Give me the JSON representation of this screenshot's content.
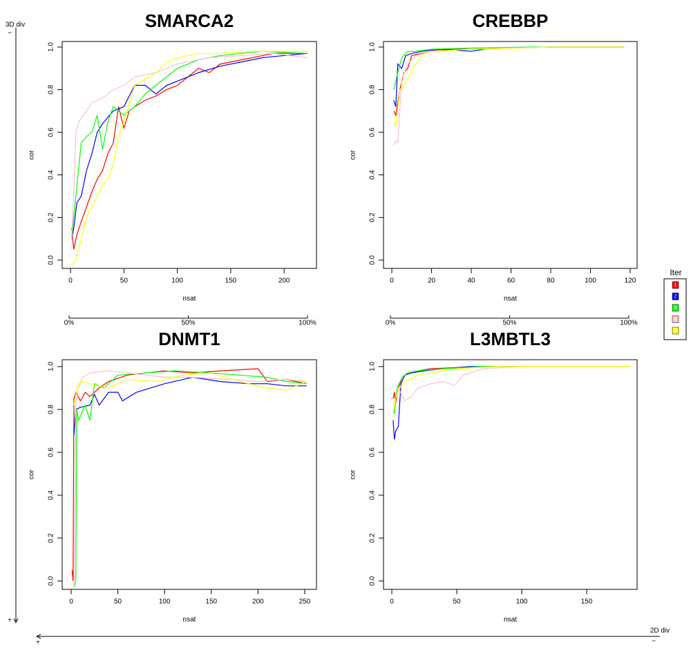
{
  "chart_data": [
    {
      "type": "line",
      "title": "SMARCA2",
      "xlabel": "nsat",
      "ylabel": "cor",
      "xlim": [
        -7.8,
        230.3
      ],
      "xticks": [
        0,
        50,
        100,
        150,
        200
      ],
      "ylim": [
        -0.039,
        1.026
      ],
      "yticks": [
        {
          "value": 0,
          "label": "0.0"
        },
        0.2,
        0.4,
        0.6,
        0.8,
        {
          "value": 1,
          "label": "1.0"
        }
      ],
      "x2lim": [
        0,
        100
      ],
      "x2ticks": [
        {
          "value": 0,
          "label": "0%"
        },
        {
          "value": 50,
          "label": "50%"
        },
        {
          "value": 100,
          "label": "100%"
        }
      ],
      "series": [
        {
          "name": "1",
          "color": "#ff0000",
          "x": [
            1,
            3,
            6,
            10,
            15,
            20,
            25,
            30,
            35,
            40,
            45,
            50,
            55,
            60,
            70,
            80,
            90,
            100,
            110,
            120,
            130,
            140,
            150,
            170,
            190,
            222
          ],
          "values": [
            0.15,
            0.05,
            0.12,
            0.18,
            0.25,
            0.32,
            0.38,
            0.42,
            0.5,
            0.55,
            0.72,
            0.62,
            0.7,
            0.72,
            0.75,
            0.77,
            0.8,
            0.82,
            0.86,
            0.9,
            0.88,
            0.92,
            0.93,
            0.95,
            0.97,
            0.97
          ]
        },
        {
          "name": "2",
          "color": "#0000ff",
          "x": [
            1,
            3,
            6,
            10,
            15,
            20,
            25,
            30,
            40,
            50,
            60,
            70,
            80,
            90,
            100,
            120,
            140,
            160,
            180,
            200,
            222
          ],
          "values": [
            0.1,
            0.15,
            0.27,
            0.3,
            0.42,
            0.5,
            0.6,
            0.64,
            0.7,
            0.72,
            0.82,
            0.82,
            0.78,
            0.82,
            0.84,
            0.88,
            0.91,
            0.93,
            0.95,
            0.96,
            0.97
          ]
        },
        {
          "name": "3",
          "color": "#00ff00",
          "x": [
            1,
            5,
            10,
            15,
            20,
            25,
            30,
            35,
            40,
            50,
            60,
            70,
            80,
            90,
            100,
            120,
            140,
            160,
            180,
            222
          ],
          "values": [
            0.1,
            0.3,
            0.55,
            0.58,
            0.6,
            0.68,
            0.52,
            0.65,
            0.72,
            0.68,
            0.72,
            0.78,
            0.82,
            0.86,
            0.9,
            0.94,
            0.96,
            0.97,
            0.98,
            0.97
          ]
        },
        {
          "name": "4",
          "color": "#ffc0cb",
          "x": [
            1,
            3,
            5,
            8,
            15,
            20,
            30,
            40,
            50,
            60,
            80,
            100,
            130,
            160,
            190,
            222
          ],
          "values": [
            0.1,
            0.3,
            0.6,
            0.65,
            0.7,
            0.74,
            0.76,
            0.8,
            0.82,
            0.86,
            0.88,
            0.92,
            0.95,
            0.96,
            0.97,
            0.95
          ]
        },
        {
          "name": "5",
          "color": "#ffff00",
          "x": [
            1,
            5,
            10,
            15,
            20,
            25,
            30,
            35,
            40,
            45,
            50,
            60,
            70,
            80,
            90,
            100,
            120,
            140,
            170,
            222
          ],
          "values": [
            -0.03,
            0.0,
            0.1,
            0.2,
            0.25,
            0.3,
            0.35,
            0.38,
            0.45,
            0.58,
            0.65,
            0.82,
            0.85,
            0.88,
            0.93,
            0.95,
            0.97,
            0.97,
            0.98,
            0.98
          ]
        }
      ]
    },
    {
      "type": "line",
      "title": "CREBBP",
      "xlabel": "nsat",
      "ylabel": "cor",
      "xlim": [
        -4.2,
        123.5
      ],
      "xticks": [
        0,
        20,
        40,
        60,
        80,
        100,
        120
      ],
      "ylim": [
        -0.039,
        1.026
      ],
      "yticks": [
        {
          "value": 0,
          "label": "0.0"
        },
        0.2,
        0.4,
        0.6,
        0.8,
        {
          "value": 1,
          "label": "1.0"
        }
      ],
      "x2lim": [
        0,
        100
      ],
      "x2ticks": [
        {
          "value": 0,
          "label": "0%"
        },
        {
          "value": 50,
          "label": "50%"
        },
        {
          "value": 100,
          "label": "100%"
        }
      ],
      "series": [
        {
          "name": "1",
          "color": "#ff0000",
          "x": [
            1,
            2,
            4,
            6,
            8,
            10,
            15,
            20,
            30,
            40,
            60,
            80,
            117
          ],
          "values": [
            0.7,
            0.68,
            0.8,
            0.88,
            0.9,
            0.96,
            0.97,
            0.98,
            0.99,
            0.99,
            0.995,
            1.0,
            1.0
          ]
        },
        {
          "name": "2",
          "color": "#0000ff",
          "x": [
            1,
            2,
            3,
            5,
            7,
            10,
            15,
            25,
            40,
            50,
            80,
            117
          ],
          "values": [
            0.75,
            0.72,
            0.92,
            0.9,
            0.96,
            0.97,
            0.98,
            0.99,
            0.98,
            0.995,
            1.0,
            1.0
          ]
        },
        {
          "name": "3",
          "color": "#00ff00",
          "x": [
            1,
            3,
            5,
            8,
            12,
            20,
            40,
            70,
            117
          ],
          "values": [
            0.8,
            0.88,
            0.95,
            0.98,
            0.98,
            0.99,
            0.995,
            1.0,
            1.0
          ]
        },
        {
          "name": "4",
          "color": "#ffc0cb",
          "x": [
            1,
            2,
            3,
            5,
            8,
            12,
            20,
            40,
            80,
            117
          ],
          "values": [
            0.54,
            0.56,
            0.55,
            0.85,
            0.92,
            0.96,
            0.98,
            0.99,
            1.0,
            1.0
          ]
        },
        {
          "name": "5",
          "color": "#ffff00",
          "x": [
            1,
            2,
            4,
            6,
            8,
            12,
            16,
            20,
            40,
            80,
            117
          ],
          "values": [
            0.65,
            0.63,
            0.8,
            0.82,
            0.85,
            0.92,
            0.97,
            0.98,
            0.99,
            1.0,
            1.0
          ]
        }
      ]
    },
    {
      "type": "line",
      "title": "DNMT1",
      "xlabel": "nsat",
      "ylabel": "cor",
      "xlim": [
        -9.6,
        262.6
      ],
      "xticks": [
        0,
        50,
        100,
        150,
        200,
        250
      ],
      "ylim": [
        -0.039,
        1.032
      ],
      "yticks": [
        {
          "value": 0,
          "label": "0.0"
        },
        0.2,
        0.4,
        0.6,
        0.8,
        {
          "value": 1,
          "label": "1.0"
        }
      ],
      "series": [
        {
          "name": "1",
          "color": "#ff0000",
          "x": [
            1,
            2,
            3,
            5,
            10,
            15,
            20,
            30,
            40,
            60,
            80,
            100,
            130,
            160,
            200,
            210,
            230,
            252
          ],
          "values": [
            0.05,
            0.0,
            0.85,
            0.88,
            0.84,
            0.88,
            0.86,
            0.9,
            0.93,
            0.96,
            0.97,
            0.98,
            0.97,
            0.98,
            0.99,
            0.93,
            0.94,
            0.92
          ]
        },
        {
          "name": "2",
          "color": "#0000ff",
          "x": [
            3,
            5,
            10,
            20,
            25,
            30,
            40,
            50,
            55,
            70,
            100,
            130,
            160,
            190,
            210,
            230,
            252
          ],
          "values": [
            0.68,
            0.8,
            0.81,
            0.82,
            0.87,
            0.82,
            0.88,
            0.88,
            0.84,
            0.88,
            0.92,
            0.95,
            0.93,
            0.92,
            0.92,
            0.91,
            0.91
          ]
        },
        {
          "name": "3",
          "color": "#00ff00",
          "x": [
            3,
            5,
            6,
            8,
            15,
            20,
            25,
            35,
            50,
            80,
            110,
            150,
            180,
            210,
            230,
            252
          ],
          "values": [
            -0.03,
            0.0,
            0.8,
            0.75,
            0.82,
            0.75,
            0.92,
            0.9,
            0.96,
            0.97,
            0.98,
            0.97,
            0.96,
            0.95,
            0.93,
            0.92
          ]
        },
        {
          "name": "4",
          "color": "#ffc0cb",
          "x": [
            3,
            5,
            8,
            12,
            20,
            40,
            60,
            100,
            130,
            170,
            200,
            230,
            252
          ],
          "values": [
            -0.03,
            0.82,
            0.9,
            0.95,
            0.97,
            0.98,
            0.97,
            0.95,
            0.95,
            0.94,
            0.93,
            0.94,
            0.93
          ]
        },
        {
          "name": "5",
          "color": "#ffff00",
          "x": [
            3,
            6,
            10,
            20,
            40,
            60,
            90,
            120,
            150,
            180,
            210,
            230,
            252
          ],
          "values": [
            0.82,
            0.9,
            0.93,
            0.92,
            0.9,
            0.94,
            0.93,
            0.96,
            0.97,
            0.93,
            0.9,
            0.89,
            0.93
          ]
        }
      ]
    },
    {
      "type": "line",
      "title": "L3MBTL3",
      "xlabel": "nsat",
      "ylabel": "cor",
      "xlim": [
        -6.4,
        188.8
      ],
      "xticks": [
        0,
        50,
        100,
        150
      ],
      "ylim": [
        -0.039,
        1.032
      ],
      "yticks": [
        {
          "value": 0,
          "label": "0.0"
        },
        0.2,
        0.4,
        0.6,
        0.8,
        {
          "value": 1,
          "label": "1.0"
        }
      ],
      "series": [
        {
          "name": "1",
          "color": "#ff0000",
          "x": [
            1,
            2,
            3,
            5,
            8,
            12,
            20,
            30,
            50,
            80,
            120,
            184
          ],
          "values": [
            0.85,
            0.88,
            0.83,
            0.9,
            0.95,
            0.97,
            0.98,
            0.99,
            0.995,
            1.0,
            1.0,
            1.0
          ]
        },
        {
          "name": "2",
          "color": "#0000ff",
          "x": [
            1,
            2,
            3,
            5,
            7,
            10,
            15,
            25,
            40,
            60,
            120,
            184
          ],
          "values": [
            0.75,
            0.66,
            0.7,
            0.72,
            0.92,
            0.96,
            0.97,
            0.98,
            0.99,
            1.0,
            1.0,
            1.0
          ]
        },
        {
          "name": "3",
          "color": "#00ff00",
          "x": [
            1,
            2,
            4,
            8,
            12,
            20,
            40,
            70,
            184
          ],
          "values": [
            0.8,
            0.78,
            0.9,
            0.95,
            0.97,
            0.98,
            0.99,
            1.0,
            1.0
          ]
        },
        {
          "name": "4",
          "color": "#ffc0cb",
          "x": [
            1,
            3,
            5,
            10,
            15,
            20,
            30,
            40,
            48,
            55,
            70,
            100,
            184
          ],
          "values": [
            0.82,
            0.85,
            0.9,
            0.84,
            0.86,
            0.9,
            0.92,
            0.93,
            0.91,
            0.96,
            0.99,
            1.0,
            1.0
          ]
        },
        {
          "name": "5",
          "color": "#ffff00",
          "x": [
            1,
            3,
            6,
            10,
            20,
            30,
            50,
            80,
            184
          ],
          "values": [
            0.78,
            0.85,
            0.9,
            0.93,
            0.96,
            0.97,
            0.99,
            1.0,
            1.0
          ]
        }
      ]
    }
  ],
  "legend_title": "Iter",
  "vertical_axis": {
    "label": "3D div",
    "top": "−",
    "bottom": "+"
  },
  "horizontal_axis": {
    "label": "2D div",
    "left": "+",
    "right": "−"
  }
}
